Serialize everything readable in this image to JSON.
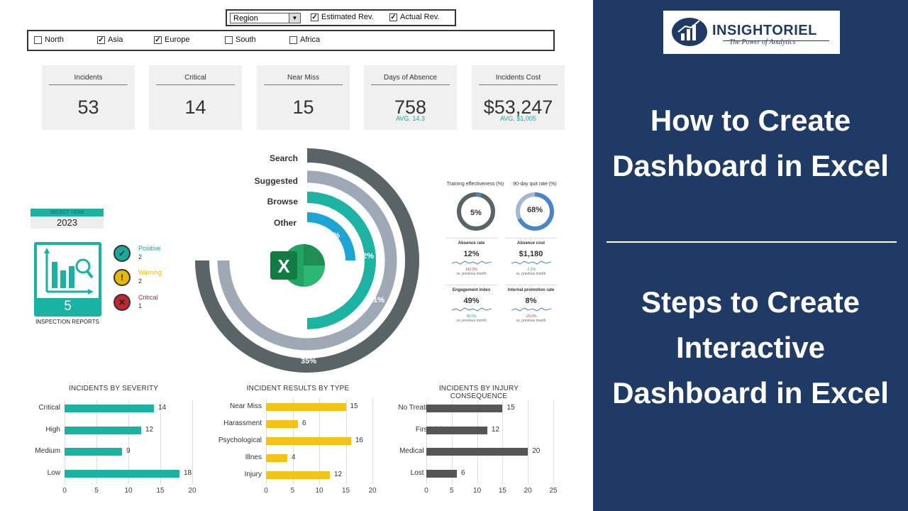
{
  "filters": {
    "dropdown": {
      "value": "Region"
    },
    "est_rev_label": "Estimated Rev.",
    "act_rev_label": "Actual Rev.",
    "regions": [
      {
        "label": "North",
        "checked": false
      },
      {
        "label": "Asia",
        "checked": true
      },
      {
        "label": "Europe",
        "checked": true
      },
      {
        "label": "South",
        "checked": false
      },
      {
        "label": "Africa",
        "checked": false
      }
    ]
  },
  "kpis": [
    {
      "label": "Incidents",
      "value": "53",
      "avg": ""
    },
    {
      "label": "Critical",
      "value": "14",
      "avg": ""
    },
    {
      "label": "Near Miss",
      "value": "15",
      "avg": ""
    },
    {
      "label": "Days of Absence",
      "value": "758",
      "avg": "AVG. 14.3"
    },
    {
      "label": "Incidents Cost",
      "value": "$53,247",
      "avg": "AVG. $1,005"
    }
  ],
  "year": {
    "label": "SELECT YEAR",
    "value": "2023"
  },
  "inspection": {
    "count": "5",
    "label": "INSPECTION REPORTS"
  },
  "statuses": [
    {
      "name": "Positive",
      "count": "2",
      "color": "#1aa89a"
    },
    {
      "name": "Warning",
      "count": "2",
      "color": "#e8b70a"
    },
    {
      "name": "Critical",
      "count": "1",
      "color": "#c0282d"
    }
  ],
  "donut": {
    "labels": [
      "Search",
      "Suggested",
      "Browse",
      "Other"
    ],
    "percents": [
      "35%",
      "31%",
      "22%",
      "12%"
    ]
  },
  "mini": {
    "training": {
      "title": "Training effectiveness (%)",
      "value": "5%"
    },
    "quit": {
      "title": "90-day quit rate (%)",
      "value": "68%"
    },
    "cells": [
      {
        "title": "Absence rate",
        "value": "12%",
        "delta": "142.0%",
        "sub": "vs. previous month",
        "delta_color": "#d9363e"
      },
      {
        "title": "Absence cost",
        "value": "$1,180",
        "delta": "-2.2%",
        "sub": "vs. previous month",
        "delta_color": "#1aa89a"
      },
      {
        "title": "Engagement index",
        "value": "49%",
        "delta": "48.5%",
        "sub": "vs. previous month",
        "delta_color": "#1aa89a"
      },
      {
        "title": "Internal promotion rate",
        "value": "8%",
        "delta": "-29.0%",
        "sub": "vs. previous month",
        "delta_color": "#d9363e"
      }
    ]
  },
  "chart_data": [
    {
      "type": "bar",
      "title": "INCIDENTS BY SEVERITY",
      "categories": [
        "Critical",
        "High",
        "Medium",
        "Low"
      ],
      "values": [
        14,
        12,
        9,
        18
      ],
      "xlim": [
        0,
        20
      ],
      "ticks": [
        "0",
        "5",
        "10",
        "15",
        "20"
      ],
      "color": "#19b2a3"
    },
    {
      "type": "bar",
      "title": "INCIDENT RESULTS BY TYPE",
      "categories": [
        "Near Miss",
        "Harassment",
        "Psychological",
        "Illnes",
        "Injury"
      ],
      "values": [
        15,
        6,
        16,
        4,
        12
      ],
      "xlim": [
        0,
        20
      ],
      "ticks": [
        "0",
        "5",
        "10",
        "15",
        "20"
      ],
      "color": "#f2c314"
    },
    {
      "type": "bar",
      "title": "INCIDENTS BY INJURY CONSEQUENCE",
      "categories": [
        "No Treatment",
        "First Aid",
        "Medical Care",
        "Lost Time"
      ],
      "values": [
        15,
        12,
        20,
        6
      ],
      "xlim": [
        0,
        25
      ],
      "ticks": [
        "0",
        "5",
        "10",
        "15",
        "20",
        "25"
      ],
      "color": "#555555"
    }
  ],
  "brand": {
    "name": "INSIGHTORIEL",
    "tagline": "The Power of Analytics"
  },
  "titles": {
    "title1": [
      "How to Create",
      "Dashboard in Excel"
    ],
    "title2": [
      "Steps to Create",
      "Interactive",
      "Dashboard in Excel"
    ]
  },
  "colors": {
    "panel_bg": "#1f3a64",
    "teal": "#19b2a3",
    "yellow": "#f2c314",
    "grey": "#555555"
  }
}
